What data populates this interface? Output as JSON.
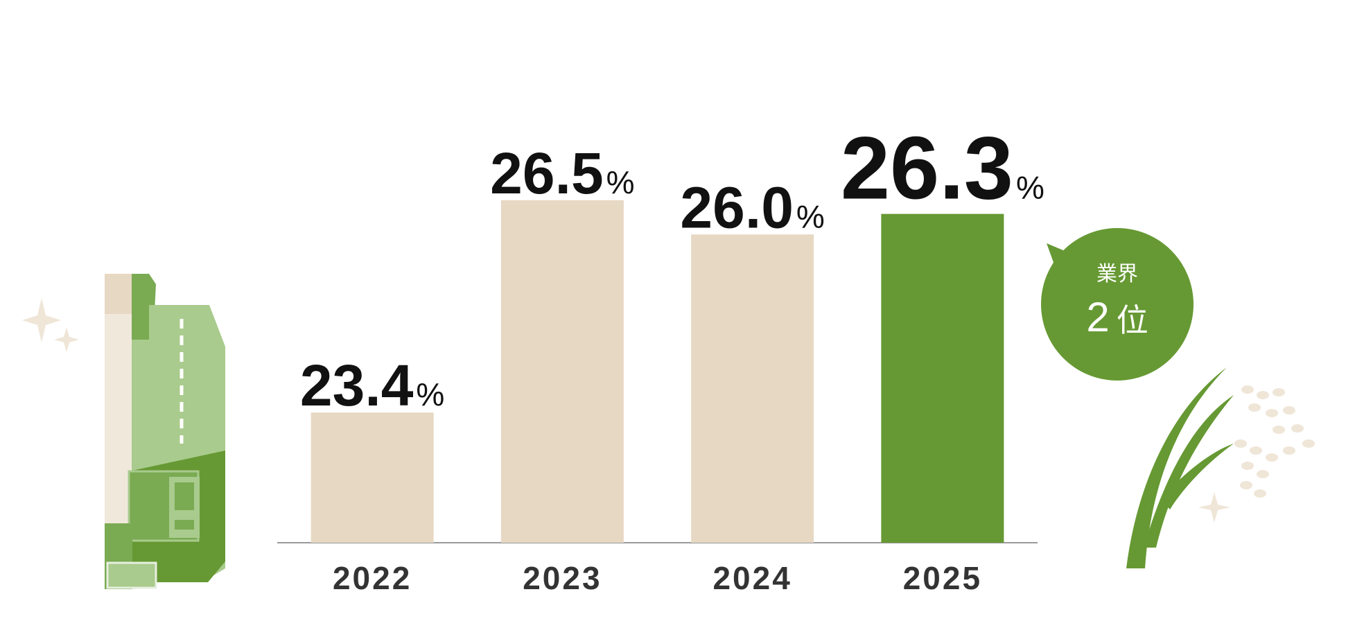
{
  "chart_data": {
    "type": "bar",
    "categories": [
      "2022",
      "2023",
      "2024",
      "2025"
    ],
    "values": [
      23.4,
      26.5,
      26.0,
      26.3
    ],
    "value_labels": [
      "23.4",
      "26.5",
      "26.0",
      "26.3"
    ],
    "unit": "%",
    "colors": [
      "#e7d8c3",
      "#e7d8c3",
      "#e7d8c3",
      "#669933"
    ],
    "highlight": 3,
    "ylim": [
      21.5,
      27.5
    ],
    "badge": {
      "label": "業界",
      "rank": "2",
      "rank_suffix": "位"
    }
  }
}
